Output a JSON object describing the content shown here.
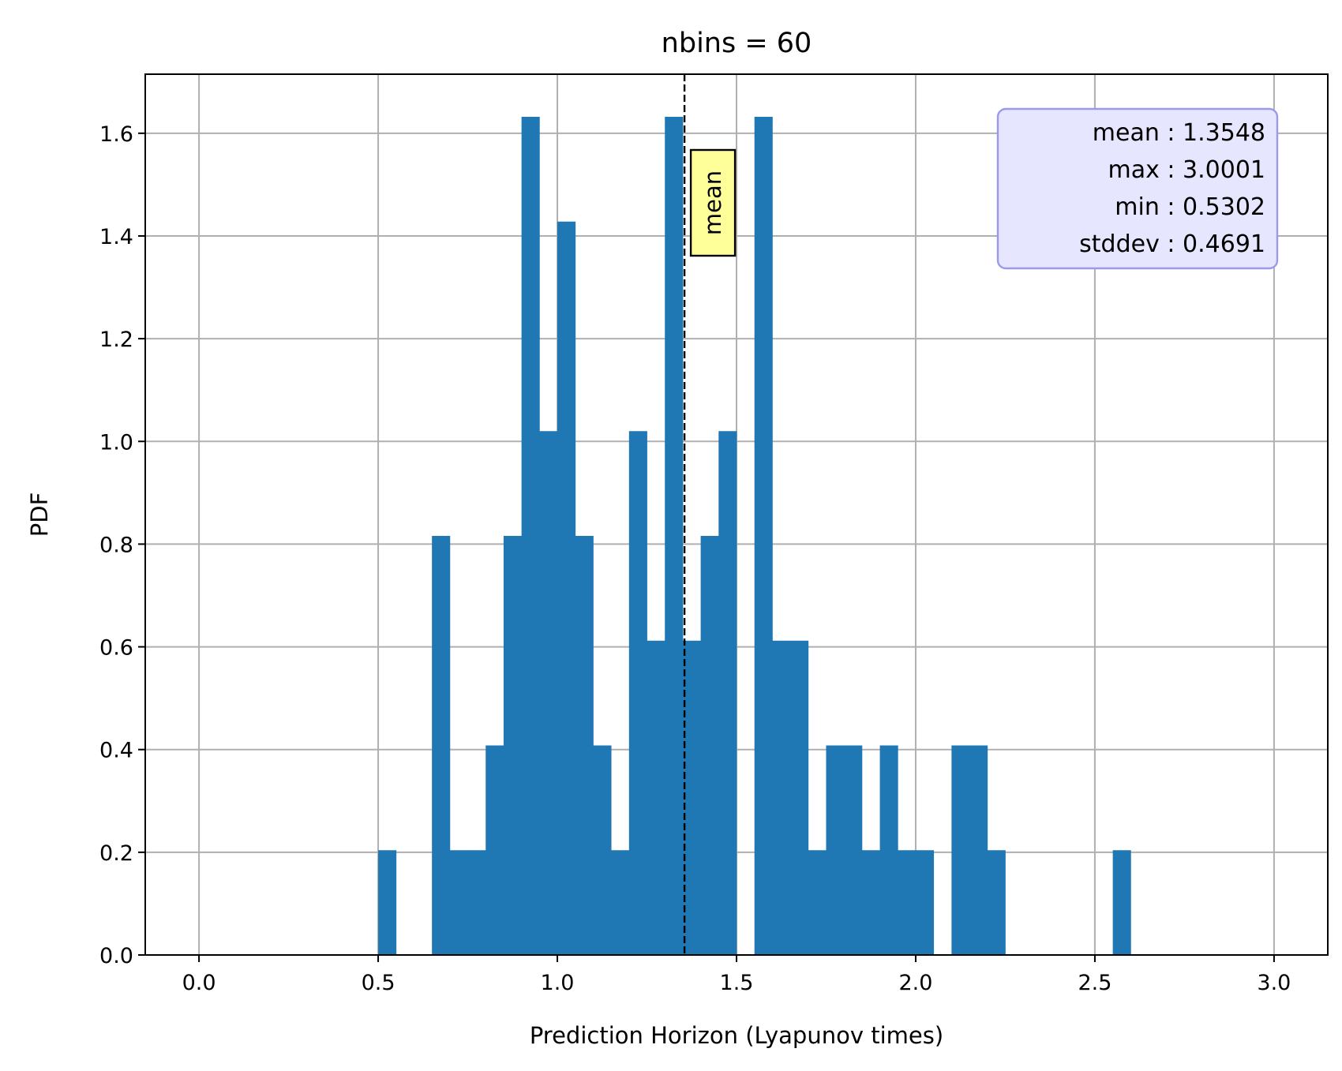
{
  "chart_data": {
    "type": "bar",
    "title": "nbins = 60",
    "xlabel": "Prediction Horizon (Lyapunov times)",
    "ylabel": "PDF",
    "xlim": [
      -0.15,
      3.15
    ],
    "ylim": [
      0,
      1.715
    ],
    "xticks": [
      0.0,
      0.5,
      1.0,
      1.5,
      2.0,
      2.5,
      3.0
    ],
    "xtick_labels": [
      "0.0",
      "0.5",
      "1.0",
      "1.5",
      "2.0",
      "2.5",
      "3.0"
    ],
    "yticks": [
      0.0,
      0.2,
      0.4,
      0.6,
      0.8,
      1.0,
      1.2,
      1.4,
      1.6
    ],
    "ytick_labels": [
      "0.0",
      "0.2",
      "0.4",
      "0.6",
      "0.8",
      "1.0",
      "1.2",
      "1.4",
      "1.6"
    ],
    "grid": true,
    "bar_color": "#1f77b4",
    "bin_width": 0.05,
    "bins": [
      {
        "x": 0.5,
        "height": 0.204
      },
      {
        "x": 0.65,
        "height": 0.816
      },
      {
        "x": 0.7,
        "height": 0.204
      },
      {
        "x": 0.75,
        "height": 0.204
      },
      {
        "x": 0.8,
        "height": 0.408
      },
      {
        "x": 0.85,
        "height": 0.816
      },
      {
        "x": 0.9,
        "height": 1.632
      },
      {
        "x": 0.95,
        "height": 1.02
      },
      {
        "x": 1.0,
        "height": 1.428
      },
      {
        "x": 1.05,
        "height": 0.816
      },
      {
        "x": 1.1,
        "height": 0.408
      },
      {
        "x": 1.15,
        "height": 0.204
      },
      {
        "x": 1.2,
        "height": 1.02
      },
      {
        "x": 1.25,
        "height": 0.612
      },
      {
        "x": 1.3,
        "height": 1.632
      },
      {
        "x": 1.35,
        "height": 0.612
      },
      {
        "x": 1.4,
        "height": 0.816
      },
      {
        "x": 1.45,
        "height": 1.02
      },
      {
        "x": 1.55,
        "height": 1.632
      },
      {
        "x": 1.6,
        "height": 0.612
      },
      {
        "x": 1.65,
        "height": 0.612
      },
      {
        "x": 1.7,
        "height": 0.204
      },
      {
        "x": 1.75,
        "height": 0.408
      },
      {
        "x": 1.8,
        "height": 0.408
      },
      {
        "x": 1.85,
        "height": 0.204
      },
      {
        "x": 1.9,
        "height": 0.408
      },
      {
        "x": 1.95,
        "height": 0.204
      },
      {
        "x": 2.0,
        "height": 0.204
      },
      {
        "x": 2.1,
        "height": 0.408
      },
      {
        "x": 2.15,
        "height": 0.408
      },
      {
        "x": 2.2,
        "height": 0.204
      },
      {
        "x": 2.55,
        "height": 0.204
      }
    ],
    "mean_line": {
      "x": 1.3548,
      "label": "mean"
    },
    "stats": [
      "mean : 1.3548",
      "max : 3.0001",
      "min : 0.5302",
      "stddev : 0.4691"
    ],
    "stats_placement": "top-right"
  }
}
